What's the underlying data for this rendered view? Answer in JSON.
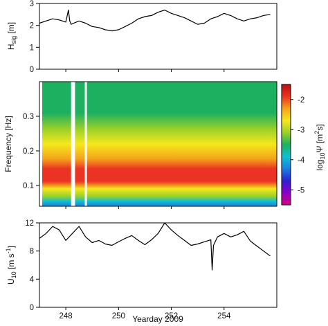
{
  "chart_data": [
    {
      "type": "line",
      "panel": "top",
      "ylabel_main": "H",
      "ylabel_sub": "sig",
      "ylabel_unit": " [m]",
      "ylim": [
        0,
        3
      ],
      "yticks": [
        "0",
        "1",
        "2",
        "3"
      ],
      "xlim": [
        247,
        256
      ],
      "x": [
        247.0,
        247.25,
        247.5,
        247.75,
        248.0,
        248.1,
        248.15,
        248.2,
        248.5,
        248.75,
        249.0,
        249.25,
        249.5,
        249.75,
        250.0,
        250.25,
        250.5,
        250.75,
        251.0,
        251.25,
        251.5,
        251.75,
        252.0,
        252.25,
        252.5,
        252.75,
        253.0,
        253.25,
        253.5,
        253.75,
        254.0,
        254.25,
        254.5,
        254.75,
        255.0,
        255.25,
        255.5,
        255.75
      ],
      "values": [
        2.1,
        2.2,
        2.3,
        2.25,
        2.15,
        2.7,
        2.2,
        2.05,
        2.2,
        2.1,
        1.95,
        1.9,
        1.8,
        1.75,
        1.8,
        1.95,
        2.1,
        2.3,
        2.4,
        2.45,
        2.6,
        2.7,
        2.55,
        2.45,
        2.35,
        2.2,
        2.05,
        2.1,
        2.3,
        2.4,
        2.55,
        2.45,
        2.3,
        2.2,
        2.3,
        2.35,
        2.45,
        2.5
      ]
    },
    {
      "type": "heatmap",
      "panel": "middle",
      "ylabel": "Frequency [Hz]",
      "ylim": [
        0.04,
        0.4
      ],
      "yticks": [
        "0.1",
        "0.2",
        "0.3"
      ],
      "xlim": [
        247,
        256
      ],
      "gaps": [
        [
          248.2,
          248.35
        ],
        [
          248.72,
          248.8
        ]
      ],
      "colorbar": {
        "label_prefix": "log",
        "label_sub": "10",
        "label_suffix": "Ψ [m",
        "label_sup": "2",
        "label_end": "s]",
        "range": [
          -5.5,
          -1.5
        ],
        "ticks": [
          "-2",
          "-3",
          "-4",
          "-5"
        ],
        "colors": [
          "#d4007f",
          "#8a00c8",
          "#3020d0",
          "#1c7fe0",
          "#10c0d0",
          "#1cb060",
          "#9ad02a",
          "#f5e81c",
          "#f5a21c",
          "#ea3322",
          "#b81010"
        ]
      }
    },
    {
      "type": "line",
      "panel": "bottom",
      "ylabel_main": "U",
      "ylabel_sub": "10",
      "ylabel_unit": " [m s",
      "ylabel_sup": "-1",
      "ylabel_end": "]",
      "ylim": [
        0,
        12
      ],
      "yticks": [
        "0",
        "4",
        "8",
        "12"
      ],
      "xlim": [
        247,
        256
      ],
      "xticks": [
        "248",
        "250",
        "252",
        "254"
      ],
      "xlabel": "Yearday 2009",
      "x": [
        247.0,
        247.25,
        247.5,
        247.75,
        248.0,
        248.25,
        248.5,
        248.75,
        249.0,
        249.25,
        249.5,
        249.75,
        250.0,
        250.25,
        250.5,
        250.75,
        251.0,
        251.25,
        251.5,
        251.75,
        252.0,
        252.25,
        252.5,
        252.75,
        253.0,
        253.25,
        253.5,
        253.55,
        253.6,
        253.75,
        254.0,
        254.25,
        254.5,
        254.75,
        255.0,
        255.25,
        255.5,
        255.75
      ],
      "values": [
        9.8,
        10.5,
        11.5,
        11.0,
        9.5,
        10.5,
        11.5,
        10.0,
        9.2,
        9.5,
        9.0,
        8.8,
        9.3,
        9.8,
        10.2,
        9.5,
        8.9,
        9.6,
        10.5,
        12.0,
        11.0,
        10.2,
        9.5,
        8.8,
        9.0,
        9.3,
        9.6,
        5.3,
        8.8,
        10.0,
        10.5,
        10.0,
        10.3,
        10.8,
        9.4,
        8.7,
        8.0,
        7.3
      ]
    }
  ]
}
